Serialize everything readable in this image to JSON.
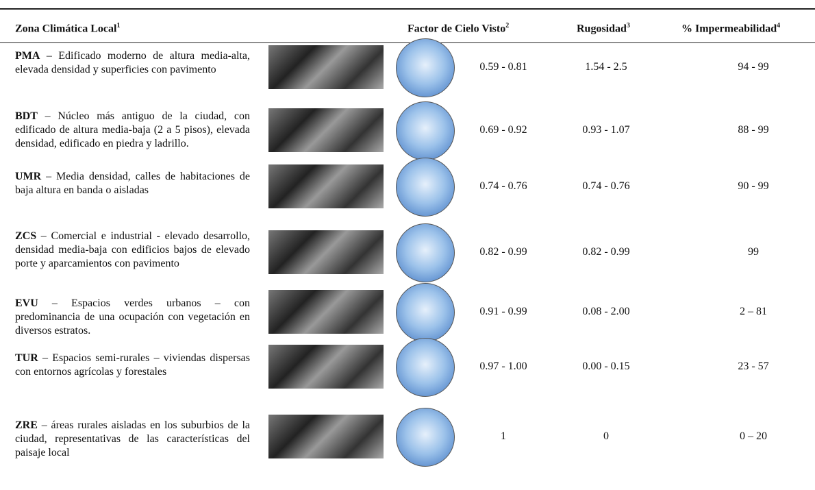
{
  "header": [
    {
      "text": "Zona Climática Local",
      "note": "1"
    },
    {
      "text": "Factor de Cielo Visto",
      "note": "2"
    },
    {
      "text": "Rugosidad",
      "note": "3"
    },
    {
      "text": "% Impermeabilidad",
      "note": "4"
    }
  ],
  "rows": [
    {
      "code": "PMA",
      "description": "– Edificado moderno de altura media-alta, elevada densidad y superficies con pavimento",
      "svf": "0.59 - 0.81",
      "rugosity": "1.54 - 2.5",
      "impermeability": "94 - 99"
    },
    {
      "code": "BDT",
      "description": "– Núcleo más antiguo de la ciudad, con edificado de altura media-baja (2 a 5 pisos), elevada densidad, edificado en piedra y ladrillo.",
      "svf": "0.69 - 0.92",
      "rugosity": "0.93 - 1.07",
      "impermeability": "88 - 99"
    },
    {
      "code": "UMR",
      "description": "– Media densidad, calles de habitaciones de baja altura en banda o aisladas",
      "svf": "0.74 - 0.76",
      "rugosity": "0.74 - 0.76",
      "impermeability": "90 - 99"
    },
    {
      "code": "ZCS",
      "description": "– Comercial e industrial - elevado desarrollo, densidad media-baja con edificios bajos de elevado porte y aparcamientos con pavimento",
      "svf": "0.82 - 0.99",
      "rugosity": "0.82 - 0.99",
      "impermeability": "99"
    },
    {
      "code": "EVU",
      "description": "– Espacios verdes urbanos – con predominancia de una ocupación con vegetación en diversos estratos.",
      "svf": "0.91 - 0.99",
      "rugosity": "0.08 - 2.00",
      "impermeability": "2 – 81"
    },
    {
      "code": "TUR",
      "description": "– Espacios semi-rurales – viviendas dispersas con entornos agrícolas y forestales",
      "svf": "0.97 - 1.00",
      "rugosity": "0.00 - 0.15",
      "impermeability": "23 - 57"
    },
    {
      "code": "ZRE",
      "description": "– áreas rurales aisladas en los suburbios de la ciudad, representativas de las características del paisaje local",
      "svf": "1",
      "rugosity": "0",
      "impermeability": "0 – 20"
    }
  ]
}
